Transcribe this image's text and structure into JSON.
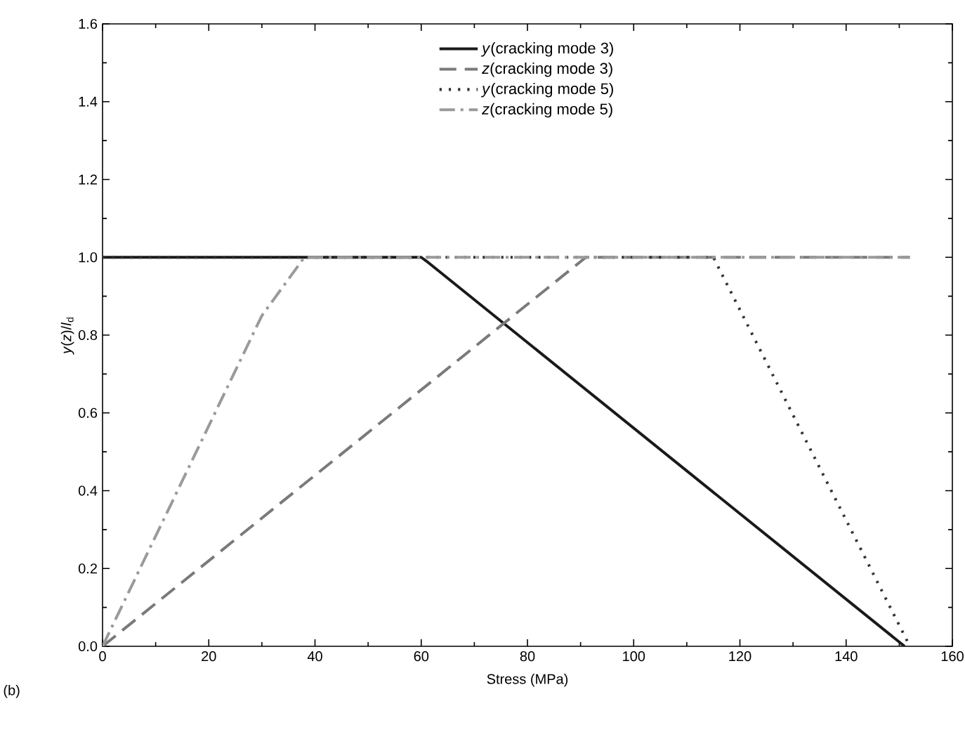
{
  "chart_data": {
    "type": "line",
    "xlabel": "Stress (MPa)",
    "ylabel": "*y*(*z*)/*l*$_{d}$",
    "xlim": [
      0,
      160
    ],
    "ylim": [
      0,
      1.6
    ],
    "xticks": [
      0,
      20,
      40,
      60,
      80,
      100,
      120,
      140,
      160
    ],
    "yticks": [
      {
        "value": 0,
        "label": "0.0"
      },
      0.2,
      0.4,
      0.6,
      0.8,
      {
        "value": 1,
        "label": "1.0"
      },
      1.2,
      1.4,
      1.6
    ],
    "legend": "top",
    "grid": false,
    "marker": "none",
    "annotations": [
      "(b)"
    ],
    "series": [
      {
        "name": "*y*(cracking mode 3)",
        "color": "#1a1a1a",
        "line_style": "solid",
        "x": [
          0,
          60,
          61,
          151
        ],
        "values": [
          1,
          1,
          0.99,
          0
        ]
      },
      {
        "name": "*z*(cracking mode 3)",
        "color": "#7a7a7a",
        "line_style": "dashed",
        "x": [
          0,
          91,
          152
        ],
        "values": [
          0,
          1,
          1
        ]
      },
      {
        "name": "*y*(cracking mode 5)",
        "color": "#333333",
        "line_style": "dotted",
        "x": [
          0,
          115,
          152
        ],
        "values": [
          1,
          1,
          0
        ]
      },
      {
        "name": "*z*(cracking mode 5)",
        "color": "#9a9a9a",
        "line_style": "dashdot",
        "x": [
          0,
          30,
          38,
          152
        ],
        "values": [
          0,
          0.85,
          1,
          1
        ]
      }
    ]
  }
}
